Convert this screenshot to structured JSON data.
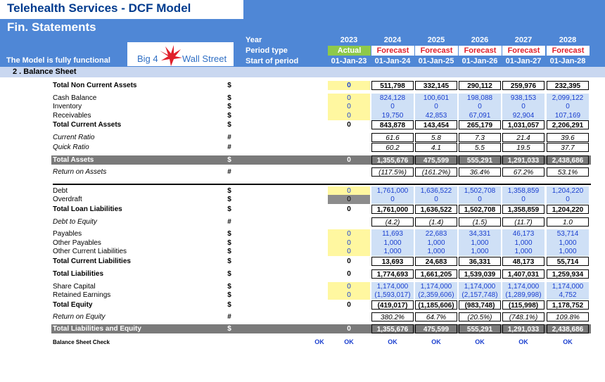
{
  "title": "Telehealth Services - DCF Model",
  "subtitle": "Fin. Statements",
  "functional_note": "The Model is fully functional",
  "logo": {
    "left": "Big 4",
    "right": "Wall Street"
  },
  "header_labels": {
    "year": "Year",
    "period_type": "Period type",
    "start": "Start of period"
  },
  "years": [
    "2023",
    "2024",
    "2025",
    "2026",
    "2027",
    "2028"
  ],
  "period_types": [
    "Actual",
    "Forecast",
    "Forecast",
    "Forecast",
    "Forecast",
    "Forecast"
  ],
  "starts": [
    "01-Jan-23",
    "01-Jan-24",
    "01-Jan-25",
    "01-Jan-26",
    "01-Jan-27",
    "01-Jan-28"
  ],
  "section": "2 . Balance Sheet",
  "rows": [
    {
      "label": "Total Non Current Assets",
      "unit": "$",
      "style": "bold",
      "values": [
        "0",
        "511,798",
        "332,145",
        "290,112",
        "259,976",
        "232,395"
      ]
    },
    {
      "label": "Cash Balance",
      "unit": "$",
      "style": "input",
      "values": [
        "0",
        "824,128",
        "100,601",
        "198,088",
        "938,153",
        "2,099,122"
      ]
    },
    {
      "label": "Inventory",
      "unit": "$",
      "style": "input",
      "values": [
        "0",
        "0",
        "0",
        "0",
        "0",
        "0"
      ]
    },
    {
      "label": "Receivables",
      "unit": "$",
      "style": "input",
      "values": [
        "0",
        "19,750",
        "42,853",
        "67,091",
        "92,904",
        "107,169"
      ]
    },
    {
      "label": "Total Current Assets",
      "unit": "$",
      "style": "bold",
      "values": [
        "0",
        "843,878",
        "143,454",
        "265,179",
        "1,031,057",
        "2,206,291"
      ]
    },
    {
      "label": "Current Ratio",
      "unit": "#",
      "style": "ratio",
      "values": [
        "",
        "61.6",
        "5.8",
        "7.3",
        "21.4",
        "39.6"
      ]
    },
    {
      "label": "Quick Ratio",
      "unit": "#",
      "style": "ratio",
      "values": [
        "",
        "60.2",
        "4.1",
        "5.5",
        "19.5",
        "37.7"
      ]
    },
    {
      "label": "Total Assets",
      "unit": "$",
      "style": "grey",
      "values": [
        "0",
        "1,355,676",
        "475,599",
        "555,291",
        "1,291,033",
        "2,438,686"
      ]
    },
    {
      "label": "Return on Assets",
      "unit": "#",
      "style": "ratio",
      "values": [
        "",
        "(117.5%)",
        "(161.2%)",
        "36.4%",
        "67.2%",
        "53.1%"
      ]
    },
    {
      "label": "Debt",
      "unit": "$",
      "style": "input",
      "values": [
        "0",
        "1,761,000",
        "1,636,522",
        "1,502,708",
        "1,358,859",
        "1,204,220"
      ]
    },
    {
      "label": "Overdraft",
      "unit": "$",
      "style": "input",
      "values": [
        "0",
        "0",
        "0",
        "0",
        "0",
        "0"
      ]
    },
    {
      "label": "Total Loan Liabilities",
      "unit": "$",
      "style": "bold",
      "values": [
        "0",
        "1,761,000",
        "1,636,522",
        "1,502,708",
        "1,358,859",
        "1,204,220"
      ]
    },
    {
      "label": "Debt to Equity",
      "unit": "#",
      "style": "ratio",
      "values": [
        "",
        "(4.2)",
        "(1.4)",
        "(1.5)",
        "(11.7)",
        "1.0"
      ]
    },
    {
      "label": "Payables",
      "unit": "$",
      "style": "input",
      "values": [
        "0",
        "11,693",
        "22,683",
        "34,331",
        "46,173",
        "53,714"
      ]
    },
    {
      "label": "Other  Payables",
      "unit": "$",
      "style": "input",
      "values": [
        "0",
        "1,000",
        "1,000",
        "1,000",
        "1,000",
        "1,000"
      ]
    },
    {
      "label": "Other Current Liabilities",
      "unit": "$",
      "style": "input",
      "values": [
        "0",
        "1,000",
        "1,000",
        "1,000",
        "1,000",
        "1,000"
      ]
    },
    {
      "label": "Total Current Liabilities",
      "unit": "$",
      "style": "bold",
      "values": [
        "0",
        "13,693",
        "24,683",
        "36,331",
        "48,173",
        "55,714"
      ]
    },
    {
      "label": "Total Liabilities",
      "unit": "$",
      "style": "bold",
      "values": [
        "0",
        "1,774,693",
        "1,661,205",
        "1,539,039",
        "1,407,031",
        "1,259,934"
      ]
    },
    {
      "label": "Share Capital",
      "unit": "$",
      "style": "input",
      "values": [
        "0",
        "1,174,000",
        "1,174,000",
        "1,174,000",
        "1,174,000",
        "1,174,000"
      ]
    },
    {
      "label": "Retained Earnings",
      "unit": "$",
      "style": "input",
      "values": [
        "0",
        "(1,593,017)",
        "(2,359,606)",
        "(2,157,748)",
        "(1,289,998)",
        "4,752"
      ]
    },
    {
      "label": "Total Equity",
      "unit": "$",
      "style": "bold",
      "values": [
        "0",
        "(419,017)",
        "(1,185,606)",
        "(983,748)",
        "(115,998)",
        "1,178,752"
      ]
    },
    {
      "label": "Return on Equity",
      "unit": "#",
      "style": "ratio",
      "values": [
        "",
        "380.2%",
        "64.7%",
        "(20.5%)",
        "(748.1%)",
        "109.8%"
      ]
    },
    {
      "label": "Total Liabilities and Equity",
      "unit": "$",
      "style": "grey",
      "values": [
        "0",
        "1,355,676",
        "475,599",
        "555,291",
        "1,291,033",
        "2,438,686"
      ]
    }
  ],
  "check": {
    "label": "Balance Sheet Check",
    "total": "OK",
    "values": [
      "OK",
      "OK",
      "OK",
      "OK",
      "OK",
      "OK"
    ]
  }
}
